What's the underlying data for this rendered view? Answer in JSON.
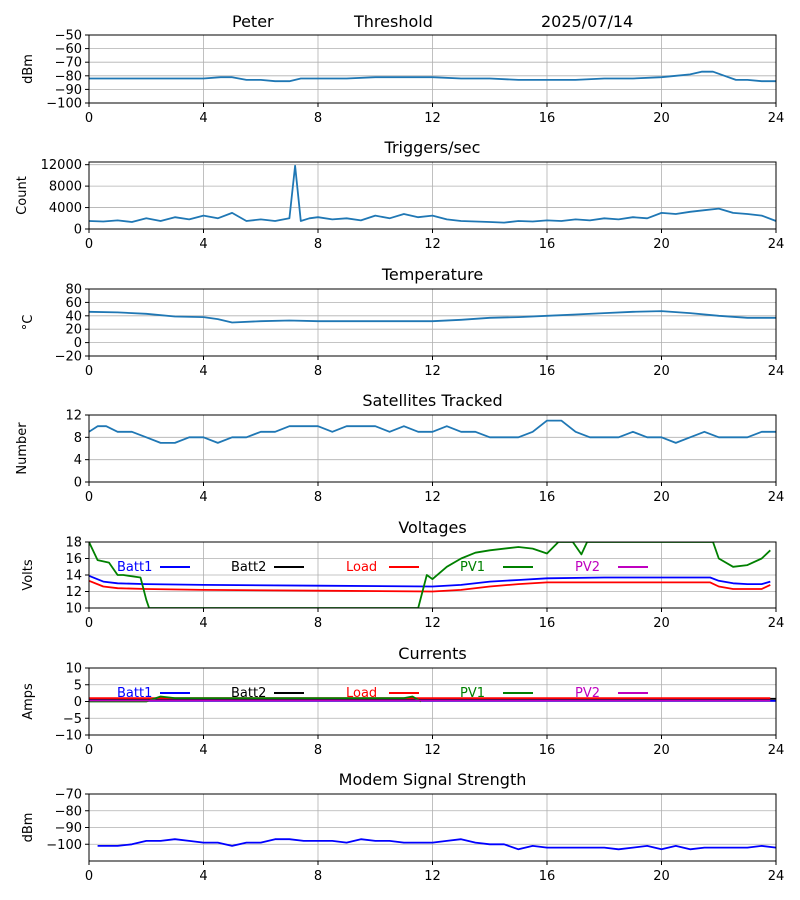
{
  "header": {
    "name": "Peter",
    "mode": "Threshold",
    "date": "2025/07/14"
  },
  "chart_data": [
    {
      "type": "line",
      "title": "",
      "xlabel": "",
      "ylabel": "dBm",
      "xlim": [
        0,
        24
      ],
      "ylim": [
        -100,
        -50
      ],
      "xticks": [
        0,
        4,
        8,
        12,
        16,
        20,
        24
      ],
      "yticks": [
        -100,
        -90,
        -80,
        -70,
        -60,
        -50
      ],
      "grid": true,
      "series": [
        {
          "color": "#1f77b4",
          "x": [
            0,
            1,
            2,
            3,
            4,
            4.6,
            5,
            5.5,
            6,
            6.5,
            7,
            7.4,
            8,
            9,
            10,
            11,
            12,
            13,
            14,
            15,
            16,
            17,
            18,
            19,
            20,
            20.5,
            21,
            21.4,
            21.8,
            22.2,
            22.6,
            23,
            23.5,
            24
          ],
          "y": [
            -82,
            -82,
            -82,
            -82,
            -82,
            -81,
            -81,
            -83,
            -83,
            -84,
            -84,
            -82,
            -82,
            -82,
            -81,
            -81,
            -81,
            -82,
            -82,
            -83,
            -83,
            -83,
            -82,
            -82,
            -81,
            -80,
            -79,
            -77,
            -77,
            -80,
            -83,
            -83,
            -84,
            -84
          ]
        }
      ]
    },
    {
      "type": "line",
      "title": "Triggers/sec",
      "xlabel": "",
      "ylabel": "Count",
      "xlim": [
        0,
        24
      ],
      "ylim": [
        0,
        12500
      ],
      "xticks": [
        0,
        4,
        8,
        12,
        16,
        20,
        24
      ],
      "yticks": [
        0,
        4000,
        8000,
        12000
      ],
      "grid": true,
      "series": [
        {
          "color": "#1f77b4",
          "x": [
            0,
            0.5,
            1,
            1.5,
            2,
            2.5,
            3,
            3.5,
            4,
            4.5,
            5,
            5.5,
            6,
            6.5,
            7,
            7.2,
            7.4,
            7.7,
            8,
            8.5,
            9,
            9.5,
            10,
            10.5,
            11,
            11.5,
            12,
            12.5,
            13,
            13.5,
            14,
            14.5,
            15,
            15.5,
            16,
            16.5,
            17,
            17.5,
            18,
            18.5,
            19,
            19.5,
            20,
            20.5,
            21,
            21.5,
            22,
            22.5,
            23,
            23.5,
            24
          ],
          "y": [
            1500,
            1400,
            1600,
            1300,
            2000,
            1500,
            2200,
            1800,
            2500,
            2000,
            3000,
            1500,
            1800,
            1500,
            2000,
            11800,
            1500,
            2000,
            2200,
            1800,
            2000,
            1600,
            2500,
            2000,
            2800,
            2200,
            2500,
            1800,
            1500,
            1400,
            1300,
            1200,
            1500,
            1400,
            1600,
            1500,
            1800,
            1600,
            2000,
            1800,
            2200,
            2000,
            3000,
            2800,
            3200,
            3500,
            3800,
            3000,
            2800,
            2500,
            1500
          ]
        }
      ]
    },
    {
      "type": "line",
      "title": "Temperature",
      "xlabel": "",
      "ylabel": "°C",
      "xlim": [
        0,
        24
      ],
      "ylim": [
        -20,
        80
      ],
      "xticks": [
        0,
        4,
        8,
        12,
        16,
        20,
        24
      ],
      "yticks": [
        -20,
        0,
        20,
        40,
        60,
        80
      ],
      "grid": true,
      "series": [
        {
          "color": "#1f77b4",
          "x": [
            0,
            1,
            2,
            3,
            4,
            4.5,
            5,
            6,
            7,
            8,
            9,
            10,
            11,
            12,
            13,
            14,
            15,
            16,
            17,
            18,
            19,
            20,
            21,
            22,
            23,
            24
          ],
          "y": [
            46,
            45,
            43,
            39,
            38,
            35,
            30,
            32,
            33,
            32,
            32,
            32,
            32,
            32,
            34,
            37,
            38,
            40,
            42,
            44,
            46,
            47,
            44,
            40,
            37,
            37
          ]
        }
      ]
    },
    {
      "type": "line",
      "title": "Satellites Tracked",
      "xlabel": "",
      "ylabel": "Number",
      "xlim": [
        0,
        24
      ],
      "ylim": [
        0,
        12
      ],
      "xticks": [
        0,
        4,
        8,
        12,
        16,
        20,
        24
      ],
      "yticks": [
        0,
        4,
        8,
        12
      ],
      "grid": true,
      "series": [
        {
          "color": "#1f77b4",
          "x": [
            0,
            0.3,
            0.6,
            1,
            1.5,
            2,
            2.5,
            3,
            3.5,
            4,
            4.5,
            5,
            5.5,
            6,
            6.5,
            7,
            7.5,
            8,
            8.5,
            9,
            9.5,
            10,
            10.5,
            11,
            11.5,
            12,
            12.5,
            13,
            13.5,
            14,
            14.5,
            15,
            15.5,
            16,
            16.5,
            17,
            17.5,
            18,
            18.5,
            19,
            19.5,
            20,
            20.5,
            21,
            21.5,
            22,
            22.5,
            23,
            23.5,
            24
          ],
          "y": [
            9,
            10,
            10,
            9,
            9,
            8,
            7,
            7,
            8,
            8,
            7,
            8,
            8,
            9,
            9,
            10,
            10,
            10,
            9,
            10,
            10,
            10,
            9,
            10,
            9,
            9,
            10,
            9,
            9,
            8,
            8,
            8,
            9,
            11,
            11,
            9,
            8,
            8,
            8,
            9,
            8,
            8,
            7,
            8,
            9,
            8,
            8,
            8,
            9,
            9
          ]
        }
      ]
    },
    {
      "type": "line",
      "title": "Voltages",
      "xlabel": "",
      "ylabel": "Volts",
      "xlim": [
        0,
        24
      ],
      "ylim": [
        10,
        18
      ],
      "xticks": [
        0,
        4,
        8,
        12,
        16,
        20,
        24
      ],
      "yticks": [
        10,
        12,
        14,
        16,
        18
      ],
      "grid": true,
      "legend": "inside-top",
      "series": [
        {
          "name": "Batt1",
          "color": "#0000ff",
          "x": [
            0,
            0.5,
            1,
            2,
            4,
            8,
            12,
            13,
            14,
            15,
            16,
            18,
            20,
            21.7,
            22,
            22.5,
            23,
            23.5,
            23.8
          ],
          "y": [
            13.9,
            13.2,
            13,
            12.9,
            12.8,
            12.7,
            12.6,
            12.8,
            13.2,
            13.4,
            13.6,
            13.7,
            13.7,
            13.7,
            13.3,
            13,
            12.9,
            12.9,
            13.2
          ]
        },
        {
          "name": "Batt2",
          "color": "#000000",
          "x": [],
          "y": []
        },
        {
          "name": "Load",
          "color": "#ff0000",
          "x": [
            0,
            0.5,
            1,
            2,
            4,
            8,
            12,
            13,
            14,
            15,
            16,
            18,
            20,
            21.7,
            22,
            22.5,
            23,
            23.5,
            23.8
          ],
          "y": [
            13.3,
            12.6,
            12.4,
            12.3,
            12.2,
            12.1,
            12.0,
            12.2,
            12.6,
            12.9,
            13.1,
            13.1,
            13.1,
            13.1,
            12.6,
            12.3,
            12.3,
            12.3,
            12.8
          ]
        },
        {
          "name": "PV1",
          "color": "#008000",
          "x": [
            0,
            0.3,
            0.7,
            1,
            1.2,
            1.8,
            2,
            2.1,
            11.5,
            11.8,
            12,
            12.5,
            13,
            13.5,
            14,
            15,
            15.5,
            16,
            16.4,
            16.9,
            17.2,
            17.4,
            21.8,
            22,
            22.5,
            23,
            23.5,
            23.8
          ],
          "y": [
            18,
            15.8,
            15.5,
            14,
            14,
            13.7,
            11,
            10,
            10,
            14,
            13.5,
            15,
            16,
            16.7,
            17,
            17.4,
            17.2,
            16.6,
            18,
            18,
            16.5,
            18,
            18,
            16,
            15,
            15.2,
            16,
            17
          ]
        },
        {
          "name": "PV2",
          "color": "#bf00bf",
          "x": [],
          "y": []
        }
      ]
    },
    {
      "type": "line",
      "title": "Currents",
      "xlabel": "",
      "ylabel": "Amps",
      "xlim": [
        0,
        24
      ],
      "ylim": [
        -10,
        10
      ],
      "xticks": [
        0,
        4,
        8,
        12,
        16,
        20,
        24
      ],
      "yticks": [
        -10,
        -5,
        0,
        5,
        10
      ],
      "grid": true,
      "legend": "inside-top",
      "series": [
        {
          "name": "Batt1",
          "color": "#0000ff",
          "x": [
            0,
            24
          ],
          "y": [
            0.2,
            0.2
          ]
        },
        {
          "name": "Batt2",
          "color": "#000000",
          "x": [
            0,
            24
          ],
          "y": [
            0.8,
            0.8
          ]
        },
        {
          "name": "Load",
          "color": "#ff0000",
          "x": [
            0,
            4,
            8,
            12,
            16,
            20,
            23.8
          ],
          "y": [
            1.0,
            1.0,
            1.0,
            1.0,
            1.0,
            1.0,
            1.0
          ]
        },
        {
          "name": "PV1",
          "color": "#008000",
          "x": [
            0,
            2,
            2.5,
            3,
            4,
            8,
            11,
            11.3,
            11.6
          ],
          "y": [
            0,
            0,
            1.5,
            1.0,
            1.0,
            1.0,
            1.0,
            1.5,
            0
          ]
        },
        {
          "name": "PV2",
          "color": "#bf00bf",
          "x": [
            0,
            23.8
          ],
          "y": [
            0.3,
            0.3
          ]
        }
      ]
    },
    {
      "type": "line",
      "title": "Modem Signal Strength",
      "xlabel": "",
      "ylabel": "dBm",
      "xlim": [
        0,
        24
      ],
      "ylim": [
        -110,
        -70
      ],
      "xticks": [
        0,
        4,
        8,
        12,
        16,
        20,
        24
      ],
      "yticks": [
        -100,
        -90,
        -80,
        -70
      ],
      "grid": true,
      "series": [
        {
          "color": "#0000ff",
          "x": [
            0.3,
            1,
            1.5,
            2,
            2.5,
            3,
            3.5,
            4,
            4.5,
            5,
            5.5,
            6,
            6.5,
            7,
            7.5,
            8,
            8.5,
            9,
            9.5,
            10,
            10.5,
            11,
            11.5,
            12,
            12.5,
            13,
            13.5,
            14,
            14.5,
            15,
            15.5,
            16,
            17,
            18,
            18.5,
            19,
            19.5,
            20,
            20.5,
            21,
            21.5,
            22,
            22.5,
            23,
            23.5,
            24
          ],
          "y": [
            -101,
            -101,
            -100,
            -98,
            -98,
            -97,
            -98,
            -99,
            -99,
            -101,
            -99,
            -99,
            -97,
            -97,
            -98,
            -98,
            -98,
            -99,
            -97,
            -98,
            -98,
            -99,
            -99,
            -99,
            -98,
            -97,
            -99,
            -100,
            -100,
            -103,
            -101,
            -102,
            -102,
            -102,
            -103,
            -102,
            -101,
            -103,
            -101,
            -103,
            -102,
            -102,
            -102,
            -102,
            -101,
            -102
          ]
        }
      ]
    }
  ]
}
